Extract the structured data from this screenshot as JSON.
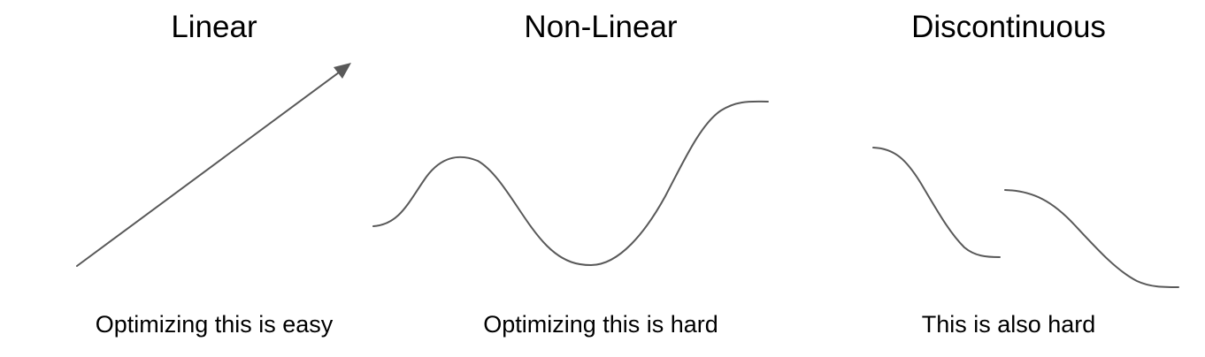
{
  "panels": {
    "linear": {
      "title": "Linear",
      "caption": "Optimizing this is easy"
    },
    "nonlinear": {
      "title": "Non-Linear",
      "caption": "Optimizing this is hard"
    },
    "discontinuous": {
      "title": "Discontinuous",
      "caption": "This is also hard"
    }
  },
  "colors": {
    "line": "#595959",
    "text": "#000000",
    "background": "#ffffff"
  }
}
